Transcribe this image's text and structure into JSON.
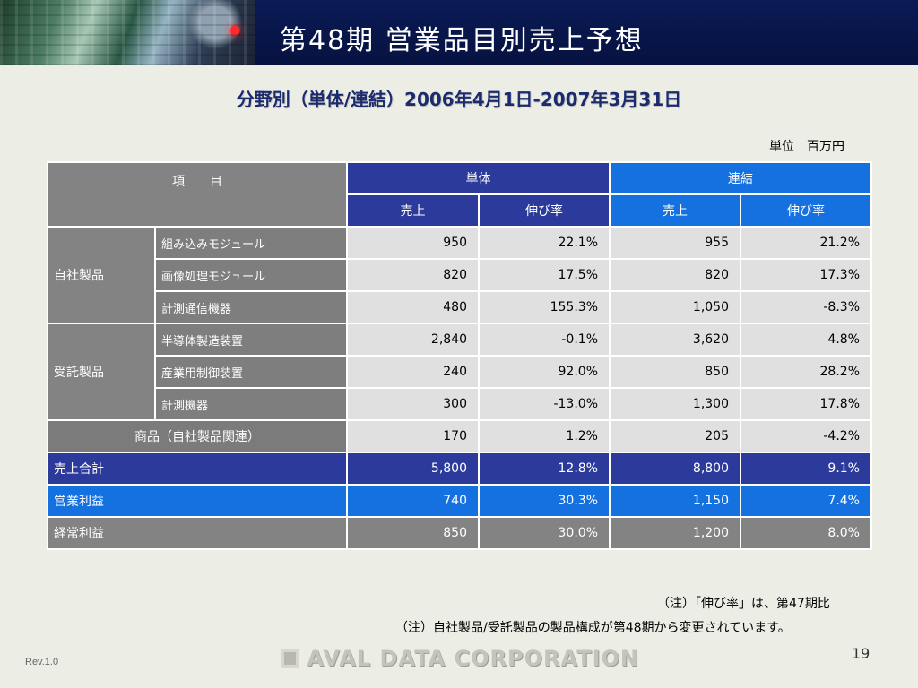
{
  "header": {
    "title": "第48期 営業品目別売上予想"
  },
  "subtitle": "分野別（単体/連結）2006年4月1日-2007年3月31日",
  "unit": "単位　百万円",
  "table": {
    "item_header": "項　　目",
    "standalone": "単体",
    "consolidated": "連結",
    "sales": "売上",
    "growth": "伸び率",
    "categories": {
      "own": "自社製品",
      "contract": "受託製品"
    },
    "rows": [
      {
        "label": "組み込みモジュール",
        "s_sales": "950",
        "s_growth": "22.1%",
        "c_sales": "955",
        "c_growth": "21.2%"
      },
      {
        "label": "画像処理モジュール",
        "s_sales": "820",
        "s_growth": "17.5%",
        "c_sales": "820",
        "c_growth": "17.3%"
      },
      {
        "label": "計測通信機器",
        "s_sales": "480",
        "s_growth": "155.3%",
        "c_sales": "1,050",
        "c_growth": "-8.3%"
      },
      {
        "label": "半導体製造装置",
        "s_sales": "2,840",
        "s_growth": "-0.1%",
        "c_sales": "3,620",
        "c_growth": "4.8%"
      },
      {
        "label": "産業用制御装置",
        "s_sales": "240",
        "s_growth": "92.0%",
        "c_sales": "850",
        "c_growth": "28.2%"
      },
      {
        "label": "計測機器",
        "s_sales": "300",
        "s_growth": "-13.0%",
        "c_sales": "1,300",
        "c_growth": "17.8%"
      }
    ],
    "goods": {
      "label": "商品（自社製品関連）",
      "s_sales": "170",
      "s_growth": "1.2%",
      "c_sales": "205",
      "c_growth": "-4.2%"
    },
    "total": {
      "label": "売上合計",
      "s_sales": "5,800",
      "s_growth": "12.8%",
      "c_sales": "8,800",
      "c_growth": "9.1%"
    },
    "operating": {
      "label": "営業利益",
      "s_sales": "740",
      "s_growth": "30.3%",
      "c_sales": "1,150",
      "c_growth": "7.4%"
    },
    "ordinary": {
      "label": "経常利益",
      "s_sales": "850",
      "s_growth": "30.0%",
      "c_sales": "1,200",
      "c_growth": "8.0%"
    }
  },
  "notes": {
    "note1": "（注）「伸び率」は、第47期比",
    "note2": "（注）自社製品/受託製品の製品構成が第48期から変更されています。"
  },
  "footer": {
    "logo": "AVAL DATA CORPORATION",
    "page": "19",
    "rev": "Rev.1.0"
  }
}
